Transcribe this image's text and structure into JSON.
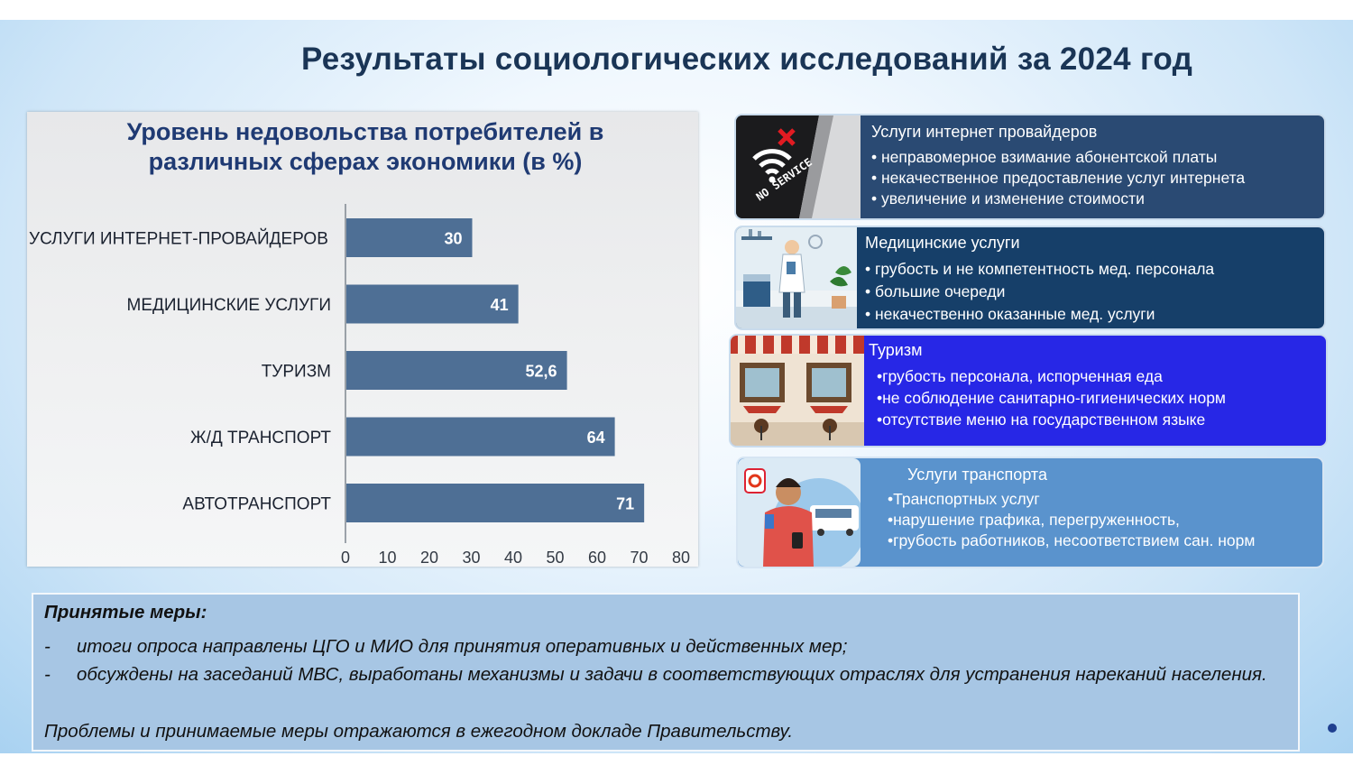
{
  "page_title": "Результаты социологических исследований за 2024 год",
  "chart_data": {
    "type": "bar",
    "orientation": "horizontal",
    "title": "Уровень недовольства потребителей в различных сферах экономики (в %)",
    "title_lines": [
      "Уровень недовольства потребителей в",
      "различных сферах экономики (в %)"
    ],
    "categories": [
      "УСЛУГИ ИНТЕРНЕТ-ПРОВАЙДЕРОВ",
      "МЕДИЦИНСКИЕ УСЛУГИ",
      "ТУРИЗМ",
      "Ж/Д ТРАНСПОРТ",
      "АВТОТРАНСПОРТ"
    ],
    "values": [
      30,
      41,
      52.6,
      64,
      71
    ],
    "value_labels": [
      "30",
      "41",
      "52,6",
      "64",
      "71"
    ],
    "xlim": [
      0,
      80
    ],
    "xticks": [
      0,
      10,
      20,
      30,
      40,
      50,
      60,
      70,
      80
    ],
    "bar_color": "#4e6f95",
    "grid": false,
    "legend": "none"
  },
  "cards": [
    {
      "title": "Услуги интернет провайдеров",
      "items": [
        "• неправомерное взимание абонентской платы",
        "• некачественное предоставление услуг интернета",
        "• увеличение и изменение стоимости"
      ],
      "image_icon": "no-service-wifi-icon",
      "image_text": "NO SERVICE"
    },
    {
      "title": "Медицинские услуги",
      "items": [
        "• грубость и не компетентность мед. персонала",
        "• большие очереди",
        "• некачественно оказанные мед. услуги"
      ],
      "image_icon": "doctor-illustration-icon"
    },
    {
      "title": "Туризм",
      "items": [
        "•грубость персонала, испорченная еда",
        "•не соблюдение санитарно-гигиенических норм",
        "•отсутствие меню на государственном языке"
      ],
      "image_icon": "cafe-illustration-icon"
    },
    {
      "title": "Услуги транспорта",
      "items": [
        "•Транспортных услуг",
        "•нарушение графика, перегруженность,",
        "•грубость работников, несоответствием сан. норм"
      ],
      "image_icon": "bus-passenger-illustration-icon"
    }
  ],
  "measures": {
    "title": "Принятые меры:",
    "items": [
      {
        "dash": "-",
        "text": "итоги опроса направлены ЦГО и МИО для принятия оперативных и действенных мер;"
      },
      {
        "dash": "-",
        "text": "обсуждены на заседаний МВС, выработаны механизмы и задачи в соответствующих отраслях для устранения нареканий населения."
      }
    ],
    "footer": "Проблемы и принимаемые меры отражаются в ежегодном докладе Правительству."
  }
}
